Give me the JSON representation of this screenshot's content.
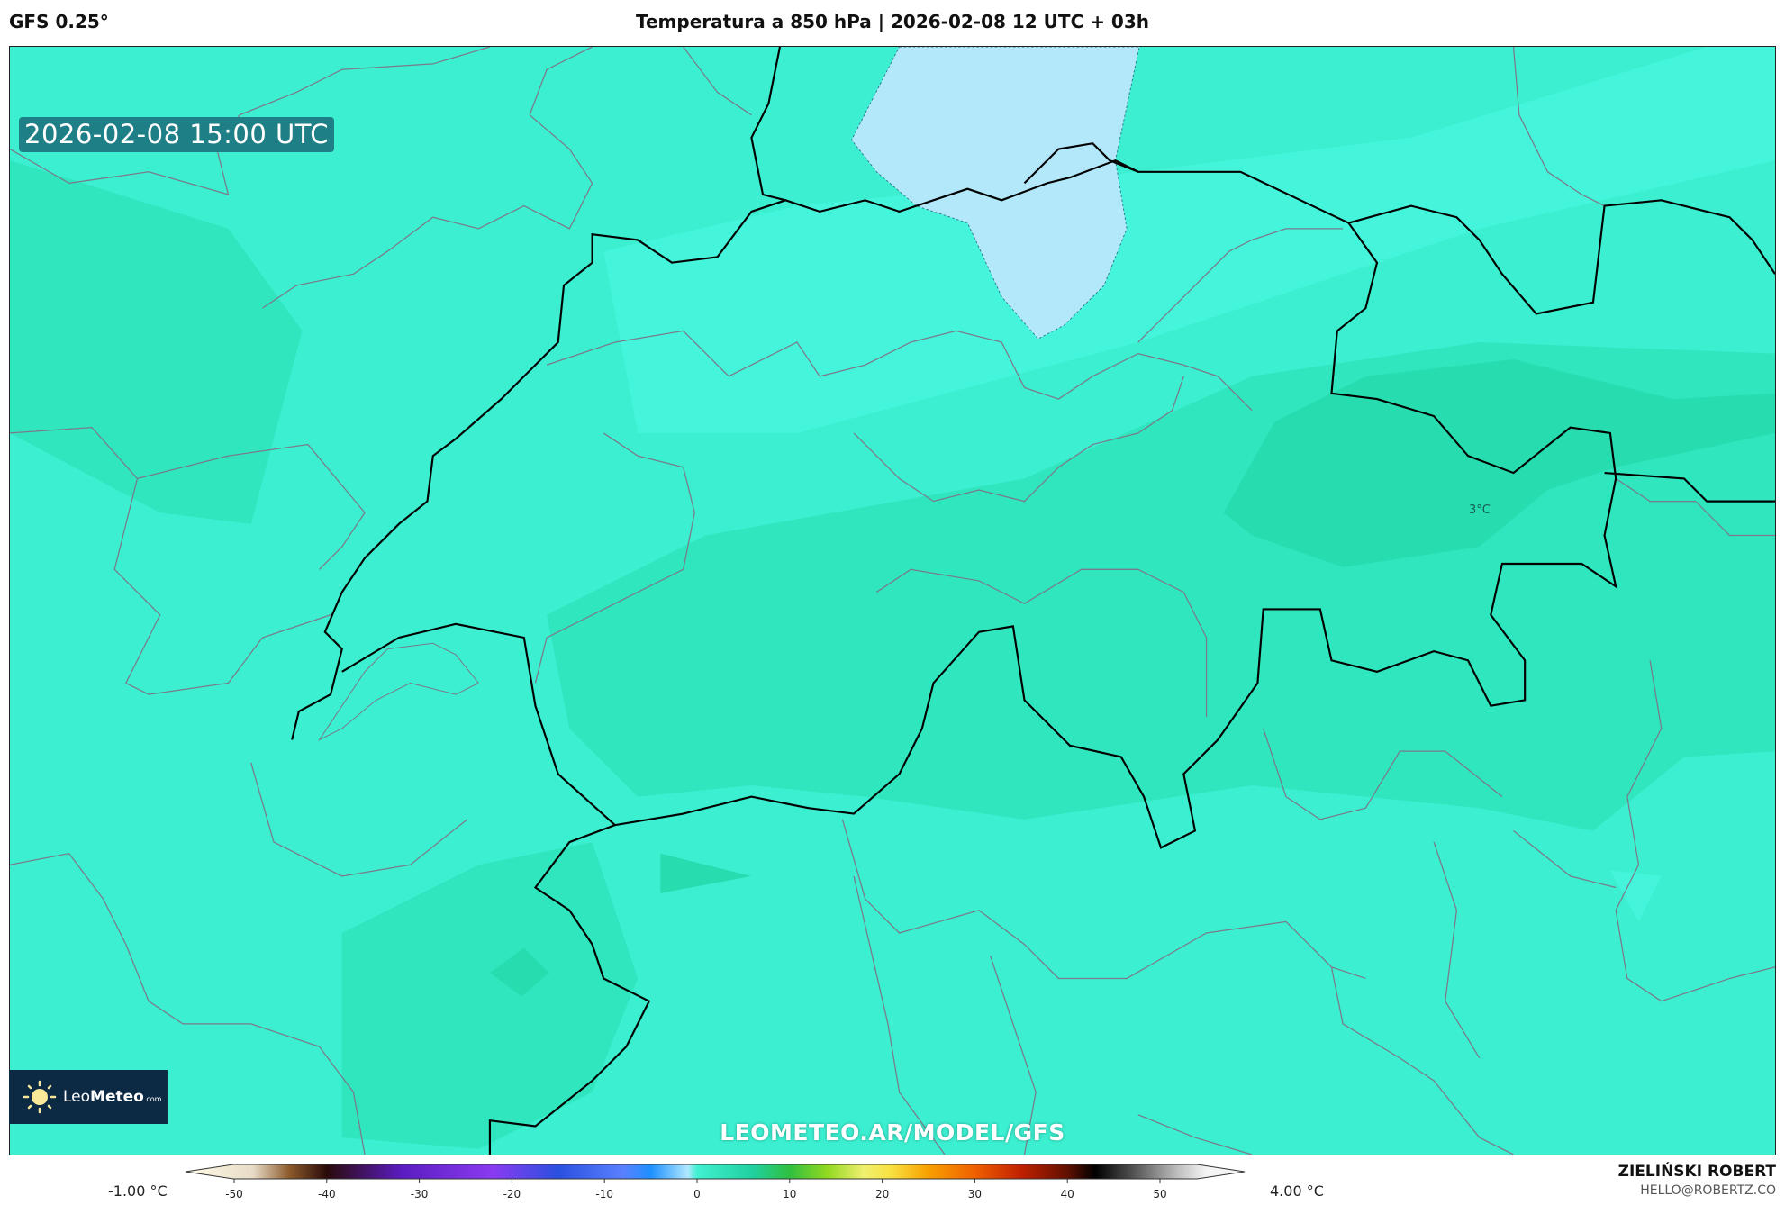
{
  "header": {
    "model": "GFS 0.25°",
    "title": "Temperatura a 850 hPa | 2026-02-08 12 UTC + 03h"
  },
  "map": {
    "valid_time": "2026-02-08 15:00 UTC",
    "contour_label": "3°C",
    "watermark": "LEOMETEO.AR/MODEL/GFS",
    "logo": {
      "light": "Leo",
      "bold": "Meteo",
      "suffix": ".com"
    },
    "colors": {
      "field": "#3BEFD0",
      "field_dark": "#2FE6BE",
      "field_darker": "#27DDB0",
      "field_light": "#45F5DB",
      "cold_patch": "#B3E8FA",
      "national_border": "#000000",
      "admin_border": "#7a7a8a",
      "logo_bg": "#0d2a45"
    }
  },
  "colorbar": {
    "min_label": "-1.00 °C",
    "max_label": "4.00 °C",
    "range": [
      -55,
      55
    ],
    "ticks": [
      "-50",
      "-40",
      "-30",
      "-20",
      "-10",
      "0",
      "10",
      "20",
      "30",
      "40",
      "50"
    ],
    "stops": [
      [
        -55,
        "#fffbe6"
      ],
      [
        -48,
        "#e8dcc8"
      ],
      [
        -44,
        "#8b5a2b"
      ],
      [
        -40,
        "#2a0a0a"
      ],
      [
        -32,
        "#5a1cc0"
      ],
      [
        -22,
        "#8a3bf0"
      ],
      [
        -15,
        "#2a50e0"
      ],
      [
        -8,
        "#5a80ff"
      ],
      [
        -5,
        "#1e90ff"
      ],
      [
        -1,
        "#b0e8ff"
      ],
      [
        0,
        "#40f0d0"
      ],
      [
        6,
        "#20d0a0"
      ],
      [
        10,
        "#30c040"
      ],
      [
        14,
        "#90d820"
      ],
      [
        18,
        "#f0f070"
      ],
      [
        21,
        "#f8e040"
      ],
      [
        25,
        "#f8a000"
      ],
      [
        30,
        "#f06000"
      ],
      [
        35,
        "#c02000"
      ],
      [
        40,
        "#601000"
      ],
      [
        43,
        "#000000"
      ],
      [
        47,
        "#505050"
      ],
      [
        52,
        "#c0c0c0"
      ],
      [
        55,
        "#f4f4f4"
      ]
    ]
  },
  "credits": {
    "author": "ZIELIŃSKI ROBERT",
    "email": "HELLO@ROBERTZ.CO"
  }
}
